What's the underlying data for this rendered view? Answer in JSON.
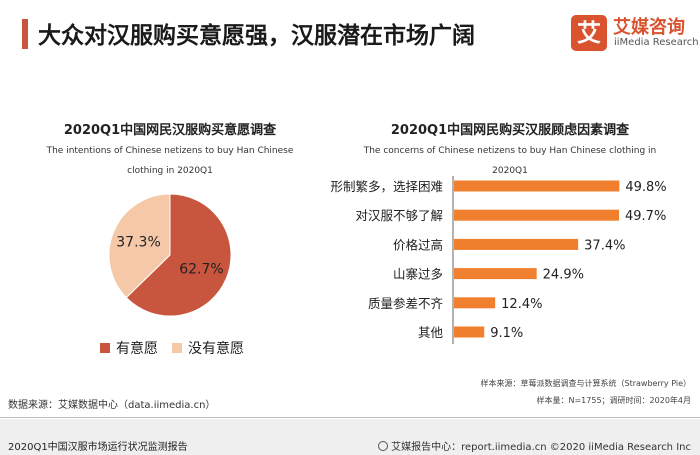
{
  "header": {
    "title": "大众对汉服购买意愿强，汉服潜在市场广阔",
    "accent_color": "#c8553d"
  },
  "logo": {
    "mark": "艾",
    "name_cn": "艾媒咨询",
    "name_en": "iiMedia Research",
    "color": "#d9532f"
  },
  "chart_data": [
    {
      "type": "pie",
      "title": "2020Q1中国网民汉服购买意愿调查",
      "subtitle": "The intentions of  Chinese netizens to buy Han Chinese clothing in 2020Q1",
      "slices": [
        {
          "label": "有意愿",
          "value": 62.7,
          "display": "62.7%",
          "color": "#c8553d"
        },
        {
          "label": "没有意愿",
          "value": 37.3,
          "display": "37.3%",
          "color": "#f5c9a8"
        }
      ],
      "legend": "bottom"
    },
    {
      "type": "bar",
      "orientation": "horizontal",
      "title": "2020Q1中国网民购买汉服顾虑因素调查",
      "subtitle": "The concerns of Chinese netizens to buy Han Chinese clothing in 2020Q1",
      "categories": [
        "形制繁多，选择困难",
        "对汉服不够了解",
        "价格过高",
        "山寨过多",
        "质量参差不齐",
        "其他"
      ],
      "values": [
        49.8,
        49.7,
        37.4,
        24.9,
        12.4,
        9.1
      ],
      "labels": [
        "49.8%",
        "49.7%",
        "37.4%",
        "24.9%",
        "12.4%",
        "9.1%"
      ],
      "bar_color": "#f07f2e",
      "xlim": [
        0,
        50
      ]
    }
  ],
  "footnotes": {
    "sample_source": "样本来源：草莓派数据调查与计算系统（Strawberry Pie）",
    "sample_info": "样本量：N=1755；调研时间：2020年4月",
    "data_source": "数据来源：艾媒数据中心（data.iimedia.cn）"
  },
  "footer": {
    "report_name": "2020Q1中国汉服市场运行状况监测报告",
    "right_text": "艾媒报告中心：report.iimedia.cn  ©2020  iiMedia Research  Inc"
  }
}
